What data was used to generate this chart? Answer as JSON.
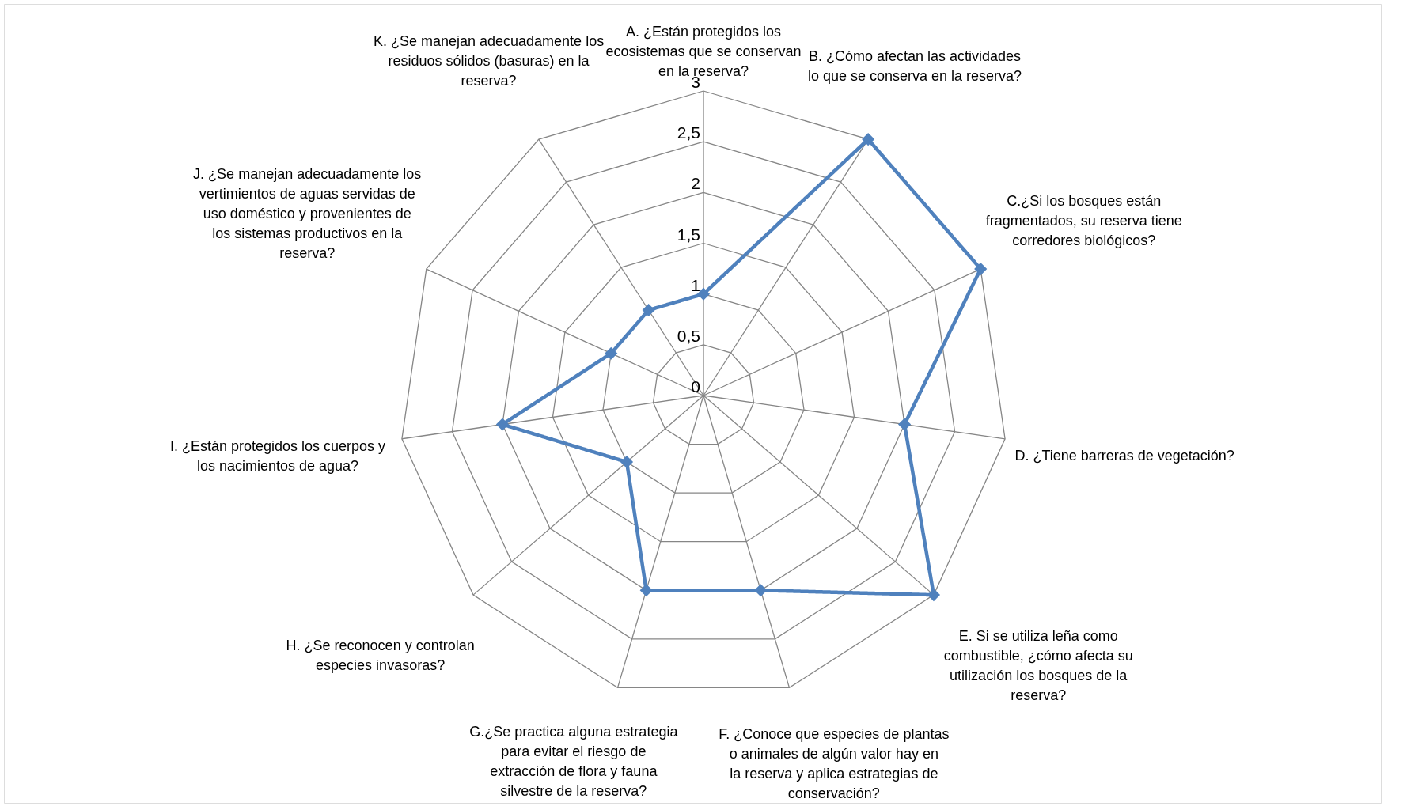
{
  "chart_data": {
    "type": "radar",
    "categories": [
      "A. ¿Están protegidos los ecosistemas que se conservan en la reserva?",
      "B. ¿Cómo afectan las actividades lo que se conserva en la reserva?",
      "C.¿Si los bosques están fragmentados, su reserva tiene corredores biológicos?",
      "D. ¿Tiene barreras de vegetación?",
      "E. Si se utiliza leña como combustible, ¿cómo afecta su utilización los bosques de la reserva?",
      "F. ¿Conoce que especies de plantas o animales de algún valor hay en la reserva y aplica estrategias de conservación?",
      "G.¿Se practica alguna estrategia para evitar el riesgo de extracción de flora y fauna silvestre de la reserva?",
      "H. ¿Se reconocen y controlan especies invasoras?",
      "I. ¿Están protegidos los cuerpos y los nacimientos de agua?",
      "J. ¿Se manejan adecuadamente los vertimientos de aguas servidas de uso doméstico y provenientes de los sistemas productivos en la reserva?",
      "K. ¿Se manejan adecuadamente los residuos sólidos (basuras) en la reserva?"
    ],
    "series": [
      {
        "color": "#4f81bd",
        "values": [
          1,
          3,
          3,
          2,
          3,
          2,
          2,
          1,
          2,
          1,
          1
        ]
      }
    ],
    "ylim": [
      0,
      3
    ],
    "yticks": [
      {
        "value": 0,
        "label": "0"
      },
      {
        "value": 0.5,
        "label": "0,5"
      },
      {
        "value": 1,
        "label": "1"
      },
      {
        "value": 1.5,
        "label": "1,5"
      },
      {
        "value": 2,
        "label": "2"
      },
      {
        "value": 2.5,
        "label": "2,5"
      },
      {
        "value": 3,
        "label": "3"
      }
    ],
    "marker": "diamond",
    "line_style": "solid",
    "legend": false
  }
}
